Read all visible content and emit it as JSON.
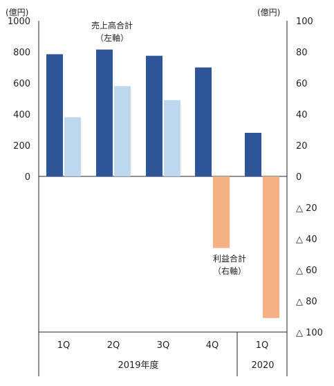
{
  "chart_data": {
    "type": "bar",
    "left_unit": "(億円)",
    "right_unit": "(億円)",
    "categories": [
      "1Q",
      "2Q",
      "3Q",
      "4Q",
      "1Q"
    ],
    "groups": [
      {
        "label": "2019年度",
        "span": [
          0,
          3
        ]
      },
      {
        "label": "2020",
        "span": [
          4,
          4
        ]
      }
    ],
    "left_axis": {
      "ylim": [
        0,
        1000
      ],
      "ticks": [
        "0",
        "200",
        "400",
        "600",
        "800",
        "1000"
      ]
    },
    "right_axis": {
      "ylim": [
        -100,
        100
      ],
      "ticks": [
        "△ 100",
        "△ 80",
        "△ 60",
        "△ 40",
        "△ 20",
        "0",
        "20",
        "40",
        "60",
        "80",
        "100"
      ]
    },
    "series": [
      {
        "name": "売上高合計",
        "name_sub": "（左軸）",
        "axis": "left",
        "color": "#2e5597",
        "values": [
          785,
          815,
          775,
          700,
          280
        ]
      },
      {
        "axis": "left",
        "color": "#bdd7ee",
        "values": [
          380,
          580,
          490,
          null,
          null
        ]
      },
      {
        "name": "利益合計",
        "name_sub": "（右軸）",
        "axis": "right",
        "color": "#f4b183",
        "values": [
          null,
          null,
          null,
          -46,
          -91
        ]
      }
    ]
  }
}
